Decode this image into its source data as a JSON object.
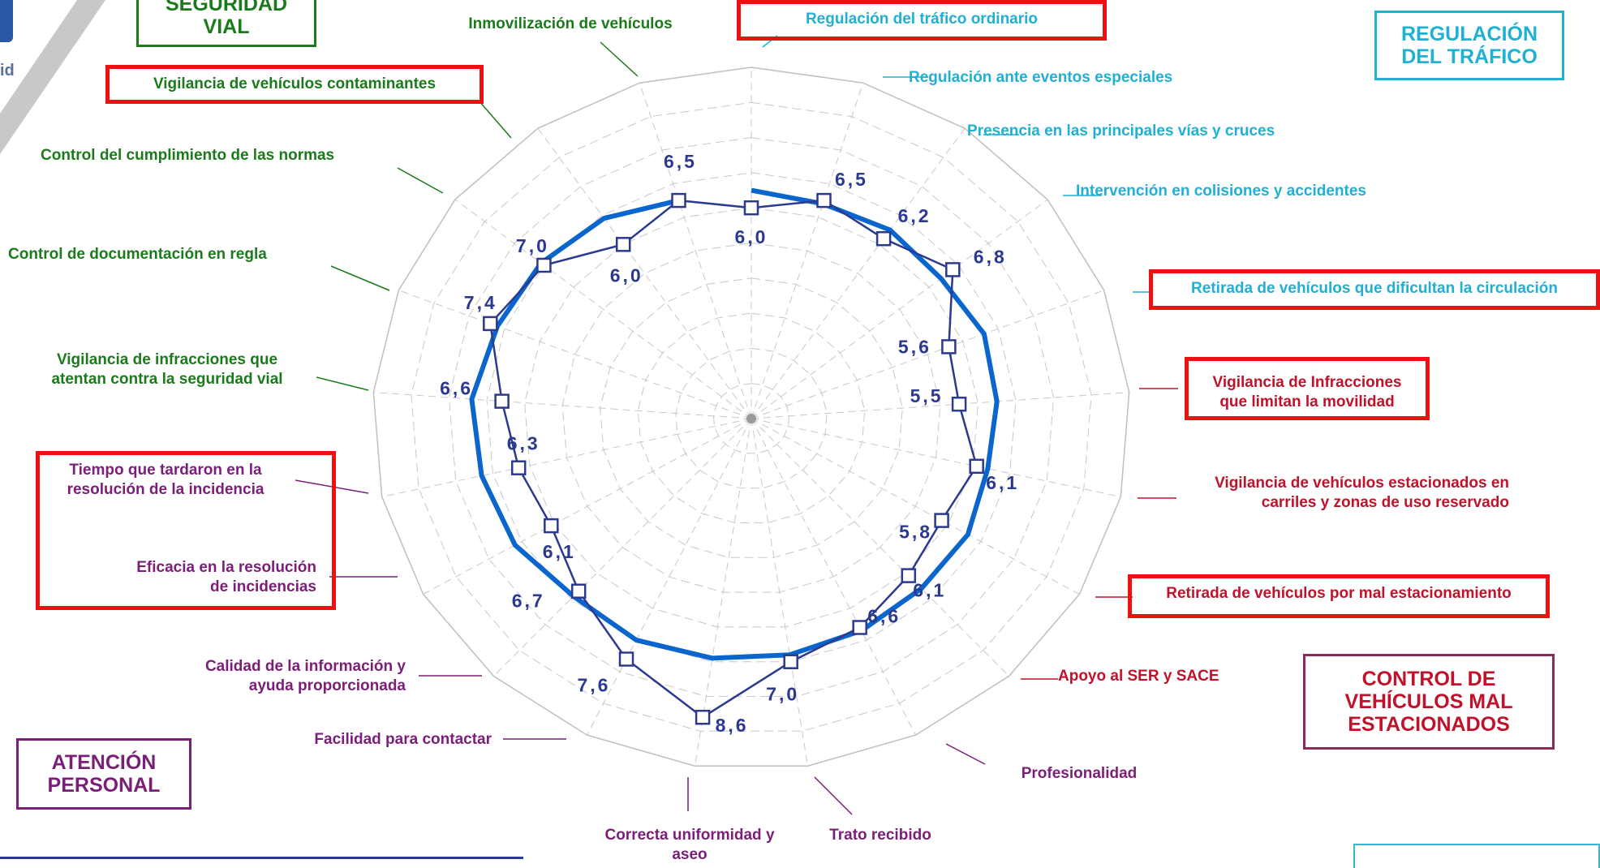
{
  "chart_data": {
    "type": "radar",
    "title": "",
    "axis_ticks": [],
    "grid": true,
    "rings": 10,
    "categories": [
      "Regulación del tráfico ordinario",
      "Regulación ante eventos especiales",
      "Presencia en las principales vías y cruces",
      "Intervención en colisiones y accidentes",
      "Retirada de vehículos que dificultan la circulación",
      "Vigilancia de Infracciones\n que limitan la movilidad",
      "Vigilancia de vehículos estacionados en\ncarriles y zonas de uso reservado",
      "Retirada de vehículos por mal estacionamiento",
      "Apoyo al SER y SACE",
      "Profesionalidad",
      "Trato recibido",
      "Correcta uniformidad y\naseo",
      "Facilidad para contactar",
      "Calidad de la información y\nayuda proporcionada",
      "Eficacia en la resolución\nde incidencias",
      "Tiempo que tardaron en la\nresolución de la incidencia",
      "Vigilancia de infracciones que\natentan contra la seguridad vial",
      "Control de documentación en regla",
      "Control  del cumplimiento de las normas",
      "Vigilancia de vehículos contaminantes",
      "Inmovilización de vehículos"
    ],
    "series": [
      {
        "name": "",
        "style": "thin line with square markers",
        "color": "#2b3a8e",
        "values": [
          6.0,
          6.5,
          6.2,
          6.8,
          5.6,
          5.5,
          6.1,
          5.8,
          6.1,
          6.6,
          7.0,
          8.6,
          7.6,
          6.7,
          6.1,
          6.3,
          6.6,
          7.4,
          7.0,
          6.0,
          6.5
        ],
        "labels": [
          "6,0",
          "6,5",
          "6,2",
          "6,8",
          "5,6",
          "5,5",
          "6,1",
          "5,8",
          "6,1",
          "6,6",
          "7,0",
          "8,6",
          "7,6",
          "6,7",
          "6,1",
          "6,3",
          "6,6",
          "7,4",
          "7,0",
          "6,0",
          "6,5"
        ]
      },
      {
        "name": "",
        "style": "thick line",
        "color": "#0a66cc",
        "values": [
          6.5,
          6.4,
          6.5,
          6.4,
          6.6,
          6.5,
          6.4,
          6.6,
          6.6,
          6.7,
          6.8,
          6.9,
          7.0,
          6.9,
          7.2,
          7.3,
          7.4,
          7.2,
          7.1,
          6.9,
          6.5
        ]
      }
    ],
    "category_colors": [
      "#1fb0d2",
      "#1fb0d2",
      "#1fb0d2",
      "#1fb0d2",
      "#1fb0d2",
      "#c0122a",
      "#c0122a",
      "#c0122a",
      "#c0122a",
      "#7a1e78",
      "#7a1e78",
      "#7a1e78",
      "#7a1e78",
      "#7a1e78",
      "#7a1e78",
      "#7a1e78",
      "#1b7a1b",
      "#1b7a1b",
      "#1b7a1b",
      "#1b7a1b",
      "#1b7a1b"
    ],
    "highlighted_categories": [
      "Regulación del tráfico ordinario",
      "Retirada de vehículos que dificultan la circulación",
      "Vigilancia de Infracciones que limitan la movilidad",
      "Retirada de vehículos por mal estacionamiento",
      "Vigilancia de vehículos contaminantes",
      "Tiempo que tardaron en la resolución de la incidencia",
      "Eficacia en la resolución de incidencias"
    ],
    "highlight_color": "#ee1111"
  },
  "groups": {
    "seguridad_vial": {
      "label": "SEGURIDAD\nVIAL",
      "color": "#1b7a1b"
    },
    "regulacion": {
      "label": "REGULACIÓN\nDEL TRÁFICO",
      "color": "#1fb0d2"
    },
    "control": {
      "label": "CONTROL DE\nVEHÍCULOS MAL\nESTACIONADOS",
      "color": "#c0122a",
      "border": "#8a2a5a"
    },
    "atencion": {
      "label": "ATENCIÓN\nPERSONAL",
      "color": "#7a1e78"
    }
  },
  "logo": {
    "text": "id"
  }
}
